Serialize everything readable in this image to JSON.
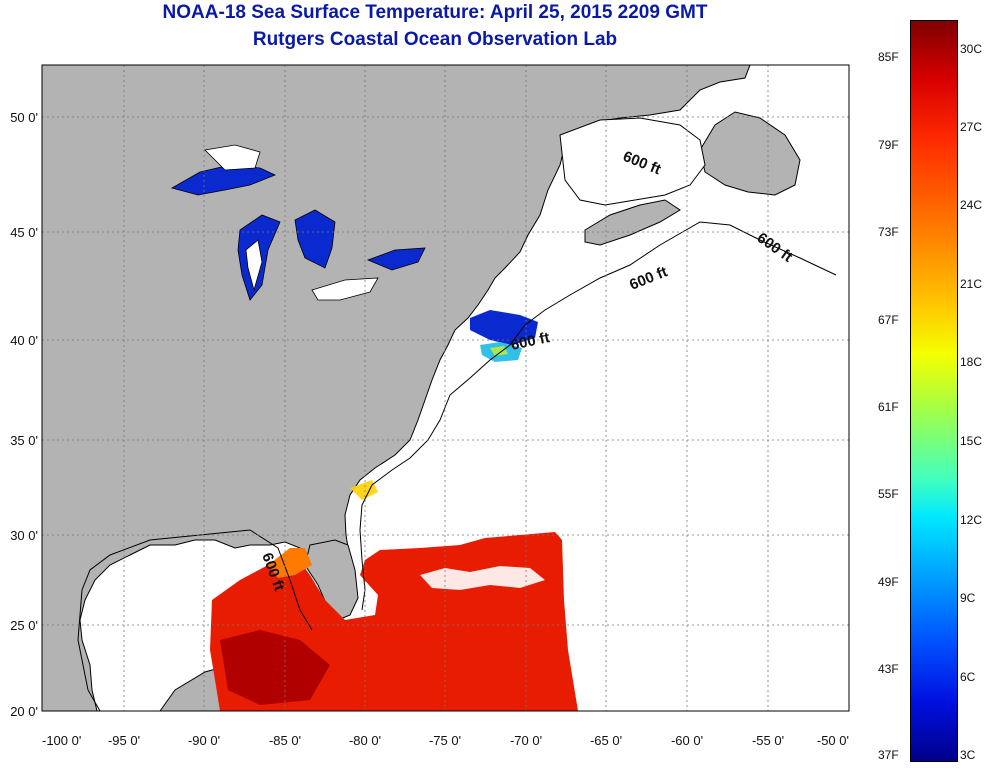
{
  "header": {
    "title": "NOAA-18 Sea Surface Temperature:  April 25, 2015 2209 GMT",
    "subtitle": "Rutgers Coastal Ocean Observation Lab"
  },
  "map": {
    "region": "Northwest Atlantic / Gulf of Mexico",
    "lon_ticks": [
      "-100 0'",
      "-95 0'",
      "-90 0'",
      "-85 0'",
      "-80 0'",
      "-75 0'",
      "-70 0'",
      "-65 0'",
      "-60 0'",
      "-55 0'",
      "-50 0'"
    ],
    "lat_ticks": [
      "50 0'",
      "45 0'",
      "40 0'",
      "35 0'",
      "30 0'",
      "25 0'",
      "20 0'"
    ],
    "isobath_label": "600 ft",
    "colors": {
      "land": "#b3b3b3",
      "ocean_nodata": "#ffffff",
      "warm_sst": "#e81c00",
      "cold_sst": "#0a2ad0"
    }
  },
  "colorbar": {
    "fahrenheit": [
      "85F",
      "79F",
      "73F",
      "67F",
      "61F",
      "55F",
      "49F",
      "43F",
      "37F"
    ],
    "celsius": [
      "30C",
      "27C",
      "24C",
      "21C",
      "18C",
      "15C",
      "12C",
      "9C",
      "6C",
      "3C"
    ]
  }
}
